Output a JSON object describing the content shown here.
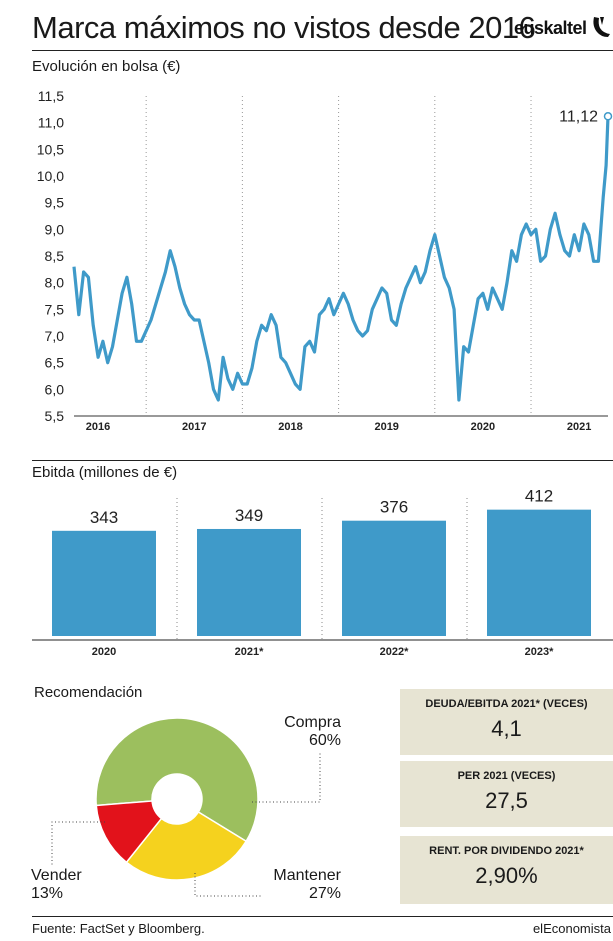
{
  "header": {
    "title": "Marca máximos no vistos desde 2016",
    "brand": "euskaltel"
  },
  "colors": {
    "line": "#3f9ac9",
    "bar": "#3f9ac9",
    "compra": "#9cbf5e",
    "mantener": "#f5d21e",
    "vender": "#e2121b",
    "box": "#e7e4d3"
  },
  "chart_data": [
    {
      "type": "line",
      "title": "Evolución en bolsa (€)",
      "ylabel": "€",
      "ylim": [
        5.5,
        11.5
      ],
      "y_ticks": [
        "11,5",
        "11,0",
        "10,5",
        "10,0",
        "9,5",
        "9,0",
        "8,5",
        "8,0",
        "7,5",
        "7,0",
        "6,5",
        "6,0",
        "5,5"
      ],
      "x_ticks": [
        "2016",
        "2017",
        "2018",
        "2019",
        "2020",
        "2021"
      ],
      "xlim": [
        2015.75,
        2021.3
      ],
      "annotation": "11,12",
      "last_value": 11.12,
      "series": [
        {
          "name": "Euskaltel",
          "x": [
            2015.75,
            2015.8,
            2015.85,
            2015.9,
            2015.95,
            2016.0,
            2016.05,
            2016.1,
            2016.15,
            2016.2,
            2016.25,
            2016.3,
            2016.35,
            2016.4,
            2016.45,
            2016.5,
            2016.55,
            2016.6,
            2016.65,
            2016.7,
            2016.75,
            2016.8,
            2016.85,
            2016.9,
            2016.95,
            2017.0,
            2017.05,
            2017.1,
            2017.15,
            2017.2,
            2017.25,
            2017.3,
            2017.35,
            2017.4,
            2017.45,
            2017.5,
            2017.55,
            2017.6,
            2017.65,
            2017.7,
            2017.75,
            2017.8,
            2017.85,
            2017.9,
            2017.95,
            2018.0,
            2018.05,
            2018.1,
            2018.15,
            2018.2,
            2018.25,
            2018.3,
            2018.35,
            2018.4,
            2018.45,
            2018.5,
            2018.55,
            2018.6,
            2018.65,
            2018.7,
            2018.75,
            2018.8,
            2018.85,
            2018.9,
            2018.95,
            2019.0,
            2019.05,
            2019.1,
            2019.15,
            2019.2,
            2019.25,
            2019.3,
            2019.35,
            2019.4,
            2019.45,
            2019.5,
            2019.55,
            2019.6,
            2019.65,
            2019.7,
            2019.75,
            2019.8,
            2019.85,
            2019.9,
            2019.95,
            2020.0,
            2020.05,
            2020.1,
            2020.15,
            2020.2,
            2020.25,
            2020.3,
            2020.35,
            2020.4,
            2020.45,
            2020.5,
            2020.55,
            2020.6,
            2020.65,
            2020.7,
            2020.75,
            2020.8,
            2020.85,
            2020.9,
            2020.95,
            2021.0,
            2021.05,
            2021.1,
            2021.15,
            2021.2,
            2021.25,
            2021.28,
            2021.3
          ],
          "values": [
            8.3,
            7.4,
            8.2,
            8.1,
            7.2,
            6.6,
            6.9,
            6.5,
            6.8,
            7.3,
            7.8,
            8.1,
            7.6,
            6.9,
            6.9,
            7.1,
            7.3,
            7.6,
            7.9,
            8.2,
            8.6,
            8.3,
            7.9,
            7.6,
            7.4,
            7.3,
            7.3,
            6.9,
            6.5,
            6.0,
            5.8,
            6.6,
            6.2,
            6.0,
            6.3,
            6.1,
            6.1,
            6.4,
            6.9,
            7.2,
            7.1,
            7.4,
            7.2,
            6.6,
            6.5,
            6.3,
            6.1,
            6.0,
            6.8,
            6.9,
            6.7,
            7.4,
            7.5,
            7.7,
            7.4,
            7.6,
            7.8,
            7.6,
            7.3,
            7.1,
            7.0,
            7.1,
            7.5,
            7.7,
            7.9,
            7.8,
            7.3,
            7.2,
            7.6,
            7.9,
            8.1,
            8.3,
            8.0,
            8.2,
            8.6,
            8.9,
            8.5,
            8.1,
            7.9,
            7.5,
            5.8,
            6.8,
            6.7,
            7.2,
            7.7,
            7.8,
            7.5,
            7.9,
            7.7,
            7.5,
            8.0,
            8.6,
            8.4,
            8.9,
            9.1,
            8.9,
            9.0,
            8.4,
            8.5,
            9.0,
            9.3,
            8.9,
            8.6,
            8.5,
            8.9,
            8.6,
            9.1,
            8.9,
            8.4,
            8.4,
            9.6,
            10.2,
            11.12
          ]
        }
      ]
    },
    {
      "type": "bar",
      "title": "Ebitda (millones de €)",
      "ylabel": "millones de €",
      "categories": [
        "2020",
        "2021*",
        "2022*",
        "2023*"
      ],
      "values": [
        343,
        349,
        376,
        412
      ],
      "value_labels": [
        "343",
        "349",
        "376",
        "412"
      ],
      "ylim": [
        0,
        450
      ]
    },
    {
      "type": "pie",
      "title": "Recomendación",
      "categories": [
        "Compra",
        "Mantener",
        "Vender"
      ],
      "values": [
        60,
        27,
        13
      ],
      "value_labels": [
        "60%",
        "27%",
        "13%"
      ]
    }
  ],
  "pie_labels": {
    "compra": {
      "name": "Compra",
      "pct": "60%"
    },
    "mantener": {
      "name": "Mantener",
      "pct": "27%"
    },
    "vender": {
      "name": "Vender",
      "pct": "13%"
    }
  },
  "stats": [
    {
      "title": "DEUDA/EBITDA 2021* (VECES)",
      "value": "4,1"
    },
    {
      "title": "PER 2021 (VECES)",
      "value": "27,5"
    },
    {
      "title": "RENT. POR DIVIDENDO 2021*",
      "value": "2,90%"
    }
  ],
  "footer": {
    "source": "Fuente: FactSet y Bloomberg.",
    "publisher": "elEconomista"
  }
}
